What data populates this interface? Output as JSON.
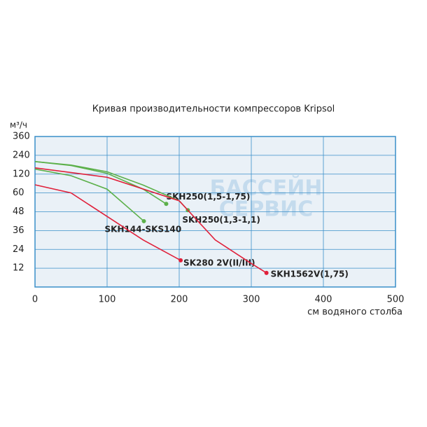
{
  "chart_data": {
    "type": "line",
    "title": "Кривая производительности компрессоров Kripsol",
    "y_label": "м³/ч",
    "x_label": "см водяного столба",
    "watermark": [
      "БАССЕЙН",
      "СЕРВИС"
    ],
    "xlim": [
      0,
      500
    ],
    "xticks": [
      0,
      100,
      200,
      300,
      400,
      500
    ],
    "ylim": [
      0,
      360
    ],
    "yticks": [
      12,
      24,
      36,
      48,
      60,
      120,
      240,
      360
    ],
    "grid": true,
    "series": [
      {
        "name": "SKH250(1,5-1,75)",
        "color": "#5cb04a",
        "x": [
          0,
          50,
          100,
          150,
          182
        ],
        "values": [
          200,
          175,
          125,
          72,
          53
        ]
      },
      {
        "name": "SKH250(1,3-1,1)",
        "color": "#5cb04a",
        "x": [
          0,
          50,
          100,
          150,
          200,
          212
        ],
        "values": [
          200,
          178,
          135,
          85,
          55,
          49
        ]
      },
      {
        "name": "SKH144-SKS140",
        "color": "#5cb04a",
        "x": [
          0,
          50,
          100,
          151
        ],
        "values": [
          152,
          115,
          72,
          42
        ]
      },
      {
        "name": "SK280 2V(II/III)",
        "color": "#e0203a",
        "x": [
          0,
          50,
          100,
          150,
          202
        ],
        "values": [
          86,
          60,
          45,
          30,
          17
        ]
      },
      {
        "name": "SKH1562V(1,75)",
        "color": "#e0203a",
        "x": [
          0,
          100,
          200,
          250,
          300,
          321
        ],
        "values": [
          160,
          110,
          55,
          30,
          15,
          9
        ]
      }
    ]
  }
}
